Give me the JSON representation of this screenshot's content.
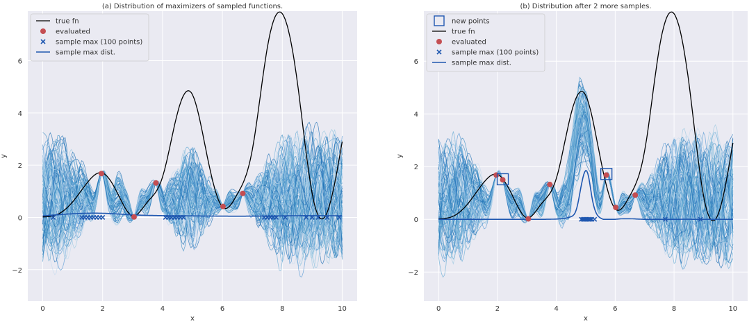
{
  "chart_data": [
    {
      "type": "line",
      "title": "(a) Distribution of maximizers of sampled functions.",
      "xlabel": "x",
      "ylabel": "y",
      "xlim": [
        -0.5,
        10.5
      ],
      "ylim": [
        -3.2,
        7.9
      ],
      "xticks": [
        0,
        2,
        4,
        6,
        8,
        10
      ],
      "yticks": [
        -2,
        0,
        2,
        4,
        6
      ],
      "grid": true,
      "legend_position": "top-left",
      "legend": [
        "true fn",
        "evaluated",
        "sample max (100 points)",
        "sample max dist."
      ],
      "sample_count": 100,
      "true_fn": {
        "name": "true fn",
        "color": "#000000",
        "x": [
          0,
          0.5,
          1,
          1.5,
          2,
          2.5,
          3,
          3.5,
          4,
          4.5,
          5,
          5.5,
          6,
          6.5,
          7,
          7.5,
          8,
          8.5,
          9,
          9.5,
          10
        ],
        "y": [
          0.02,
          0.12,
          0.6,
          1.35,
          1.7,
          0.92,
          0.06,
          0.6,
          1.55,
          4.0,
          4.7,
          2.3,
          0.4,
          0.9,
          2.6,
          6.5,
          7.8,
          5.2,
          0.9,
          0.2,
          2.9
        ]
      },
      "evaluated": {
        "name": "evaluated",
        "color": "#c44e52",
        "x": [
          1.96,
          3.05,
          3.78,
          6.02,
          6.68
        ],
        "y": [
          1.68,
          0.02,
          1.32,
          0.42,
          0.92
        ]
      },
      "sample_max_points": {
        "name": "sample max (100 points)",
        "color": "#1f57b0",
        "x": [
          0.35,
          1.3,
          1.4,
          1.5,
          1.6,
          1.7,
          1.8,
          1.9,
          2.0,
          4.1,
          4.2,
          4.3,
          4.4,
          4.5,
          4.6,
          4.7,
          7.4,
          7.5,
          7.6,
          7.7,
          7.8,
          8.1,
          8.8,
          9.0,
          9.2,
          9.5,
          9.9
        ]
      },
      "sample_max_dist": {
        "name": "sample max dist.",
        "color": "#1f57b0",
        "x": [
          0,
          1,
          2,
          3,
          4,
          5,
          6,
          7,
          8,
          9,
          10
        ],
        "y": [
          0.06,
          0.14,
          0.16,
          0.1,
          0.07,
          0.06,
          0.05,
          0.05,
          0.06,
          0.07,
          0.06
        ]
      }
    },
    {
      "type": "line",
      "title": "(b) Distribution after 2 more samples.",
      "xlabel": "x",
      "ylabel": "y",
      "xlim": [
        -0.5,
        10.5
      ],
      "ylim": [
        -3.1,
        7.9
      ],
      "xticks": [
        0,
        2,
        4,
        6,
        8,
        10
      ],
      "yticks": [
        -2,
        0,
        2,
        4,
        6
      ],
      "grid": true,
      "legend_position": "top-left",
      "legend": [
        "new points",
        "true fn",
        "evaluated",
        "sample max (100 points)",
        "sample max dist."
      ],
      "sample_count": 100,
      "new_points": {
        "name": "new points",
        "color": "#1f57b0",
        "x": [
          2.18,
          5.7
        ],
        "y": [
          1.52,
          1.72
        ]
      },
      "true_fn": {
        "name": "true fn",
        "color": "#000000",
        "x": [
          0,
          0.5,
          1,
          1.5,
          2,
          2.5,
          3,
          3.5,
          4,
          4.5,
          5,
          5.5,
          6,
          6.5,
          7,
          7.5,
          8,
          8.5,
          9,
          9.5,
          10
        ],
        "y": [
          0.02,
          0.12,
          0.6,
          1.35,
          1.7,
          0.92,
          0.06,
          0.6,
          1.55,
          4.0,
          4.7,
          2.3,
          0.4,
          0.9,
          2.6,
          6.5,
          7.8,
          5.2,
          0.9,
          0.2,
          2.9
        ]
      },
      "evaluated": {
        "name": "evaluated",
        "color": "#c44e52",
        "x": [
          1.96,
          2.18,
          3.05,
          3.78,
          5.7,
          6.02,
          6.68
        ],
        "y": [
          1.68,
          1.5,
          0.02,
          1.32,
          1.68,
          0.45,
          0.92
        ]
      },
      "sample_max_points": {
        "name": "sample max (100 points)",
        "color": "#1f57b0",
        "x": [
          4.85,
          4.9,
          4.95,
          5.0,
          5.05,
          5.1,
          5.15,
          5.2,
          5.3,
          7.7,
          8.9
        ]
      },
      "sample_max_dist": {
        "name": "sample max dist.",
        "color": "#1f57b0",
        "x": [
          0,
          1,
          2,
          3,
          4,
          4.5,
          4.7,
          4.85,
          5.0,
          5.1,
          5.2,
          5.35,
          5.5,
          6,
          7,
          8,
          9,
          10
        ],
        "y": [
          0,
          0,
          0,
          0,
          0.01,
          0.1,
          0.45,
          1.3,
          1.85,
          1.6,
          0.9,
          0.25,
          0.05,
          0,
          0,
          0,
          0,
          0
        ]
      }
    }
  ]
}
